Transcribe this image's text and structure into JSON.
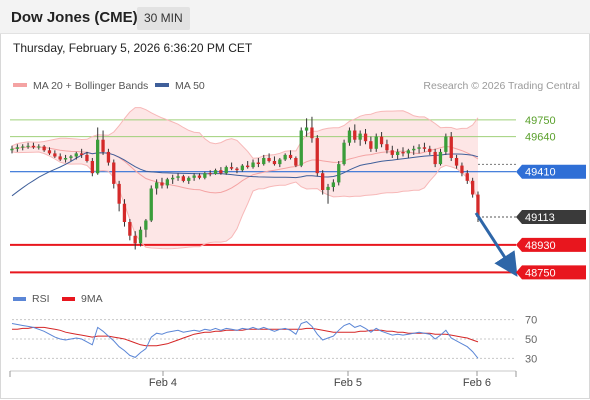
{
  "header": {
    "title": "Dow Jones (CME)",
    "timeframe": "30 MIN"
  },
  "datetime": "Thursday, February 5, 2026 6:36:20 PM CET",
  "legend": {
    "ma20_label": "MA 20 + Bollinger Bands",
    "ma50_label": "MA 50",
    "credit": "Research © 2026 Trading Central",
    "rsi_label": "RSI",
    "rsi_ma_label": "9MA"
  },
  "colors": {
    "ma20": "#f4a3a3",
    "ma50": "#3f5f9a",
    "bull": "#3a9d3a",
    "bear": "#d42a2a",
    "pivot": "#2f6fd6",
    "support": "#e8161e",
    "resistance": "#9fd07a",
    "arrow": "#2e66a8",
    "rsi": "#5b86d6",
    "rsi_ma": "#d52626"
  },
  "chart_data": [
    {
      "type": "candlestick",
      "title": "Dow Jones (CME)",
      "timeframe": "30 MIN",
      "ylim": [
        48700,
        49880
      ],
      "x_ticks": [
        "Feb 4",
        "Feb 5",
        "Feb 6"
      ],
      "y_scale_labels": [
        "49750",
        "49640",
        "49410",
        "49113",
        "48930",
        "48750"
      ],
      "levels": [
        {
          "name": "resistance",
          "value": 49750,
          "label": "49750"
        },
        {
          "name": "resistance",
          "value": 49640,
          "label": "49640"
        },
        {
          "name": "pivot",
          "value": 49410,
          "label": "49410"
        },
        {
          "name": "last",
          "value": 49113,
          "label": "49113"
        },
        {
          "name": "support",
          "value": 48930,
          "label": "48930"
        },
        {
          "name": "support",
          "value": 48750,
          "label": "48750"
        }
      ],
      "forecast_arrow": {
        "from": 49140,
        "to": 48760
      },
      "ohlc": [
        [
          49550,
          49580,
          49530,
          49560
        ],
        [
          49560,
          49590,
          49540,
          49570
        ],
        [
          49570,
          49590,
          49550,
          49575
        ],
        [
          49575,
          49600,
          49560,
          49580
        ],
        [
          49580,
          49600,
          49560,
          49570
        ],
        [
          49570,
          49590,
          49555,
          49575
        ],
        [
          49575,
          49585,
          49540,
          49550
        ],
        [
          49550,
          49570,
          49520,
          49530
        ],
        [
          49530,
          49550,
          49500,
          49510
        ],
        [
          49510,
          49530,
          49480,
          49490
        ],
        [
          49490,
          49520,
          49470,
          49500
        ],
        [
          49500,
          49520,
          49480,
          49510
        ],
        [
          49510,
          49540,
          49490,
          49530
        ],
        [
          49530,
          49560,
          49500,
          49520
        ],
        [
          49520,
          49540,
          49470,
          49480
        ],
        [
          49480,
          49500,
          49380,
          49400
        ],
        [
          49400,
          49700,
          49390,
          49620
        ],
        [
          49620,
          49680,
          49520,
          49540
        ],
        [
          49540,
          49560,
          49450,
          49470
        ],
        [
          49470,
          49490,
          49300,
          49330
        ],
        [
          49330,
          49350,
          49150,
          49200
        ],
        [
          49200,
          49230,
          49050,
          49080
        ],
        [
          49080,
          49100,
          48960,
          48990
        ],
        [
          48990,
          49020,
          48900,
          48940
        ],
        [
          48940,
          49050,
          48920,
          49030
        ],
        [
          49030,
          49100,
          48980,
          49090
        ],
        [
          49090,
          49320,
          49080,
          49300
        ],
        [
          49300,
          49360,
          49260,
          49340
        ],
        [
          49340,
          49370,
          49300,
          49320
        ],
        [
          49320,
          49370,
          49300,
          49360
        ],
        [
          49360,
          49390,
          49330,
          49370
        ],
        [
          49370,
          49400,
          49350,
          49380
        ],
        [
          49380,
          49390,
          49340,
          49350
        ],
        [
          49350,
          49380,
          49330,
          49370
        ],
        [
          49370,
          49400,
          49350,
          49385
        ],
        [
          49385,
          49400,
          49360,
          49370
        ],
        [
          49370,
          49410,
          49360,
          49400
        ],
        [
          49400,
          49420,
          49380,
          49395
        ],
        [
          49395,
          49430,
          49390,
          49420
        ],
        [
          49420,
          49440,
          49390,
          49400
        ],
        [
          49400,
          49450,
          49390,
          49440
        ],
        [
          49440,
          49470,
          49420,
          49430
        ],
        [
          49430,
          49440,
          49400,
          49420
        ],
        [
          49420,
          49460,
          49410,
          49450
        ],
        [
          49450,
          49480,
          49430,
          49440
        ],
        [
          49440,
          49490,
          49430,
          49470
        ],
        [
          49470,
          49500,
          49440,
          49460
        ],
        [
          49460,
          49520,
          49450,
          49500
        ],
        [
          49500,
          49530,
          49470,
          49480
        ],
        [
          49480,
          49510,
          49450,
          49460
        ],
        [
          49460,
          49500,
          49440,
          49490
        ],
        [
          49490,
          49530,
          49480,
          49520
        ],
        [
          49520,
          49550,
          49490,
          49500
        ],
        [
          49500,
          49510,
          49440,
          49450
        ],
        [
          49450,
          49700,
          49440,
          49680
        ],
        [
          49680,
          49760,
          49640,
          49700
        ],
        [
          49700,
          49770,
          49600,
          49630
        ],
        [
          49630,
          49650,
          49380,
          49400
        ],
        [
          49400,
          49420,
          49260,
          49290
        ],
        [
          49290,
          49330,
          49200,
          49310
        ],
        [
          49310,
          49360,
          49280,
          49340
        ],
        [
          49340,
          49480,
          49320,
          49460
        ],
        [
          49460,
          49620,
          49450,
          49600
        ],
        [
          49600,
          49700,
          49580,
          49680
        ],
        [
          49680,
          49720,
          49600,
          49620
        ],
        [
          49620,
          49680,
          49580,
          49660
        ],
        [
          49660,
          49690,
          49590,
          49610
        ],
        [
          49610,
          49640,
          49540,
          49560
        ],
        [
          49560,
          49660,
          49540,
          49640
        ],
        [
          49640,
          49670,
          49570,
          49590
        ],
        [
          49590,
          49620,
          49530,
          49550
        ],
        [
          49550,
          49580,
          49500,
          49520
        ],
        [
          49520,
          49560,
          49490,
          49540
        ],
        [
          49540,
          49570,
          49510,
          49530
        ],
        [
          49530,
          49560,
          49500,
          49550
        ],
        [
          49550,
          49580,
          49520,
          49560
        ],
        [
          49560,
          49590,
          49530,
          49570
        ],
        [
          49570,
          49600,
          49540,
          49560
        ],
        [
          49560,
          49580,
          49520,
          49540
        ],
        [
          49540,
          49560,
          49440,
          49460
        ],
        [
          49460,
          49560,
          49450,
          49540
        ],
        [
          49540,
          49660,
          49520,
          49640
        ],
        [
          49640,
          49670,
          49480,
          49500
        ],
        [
          49500,
          49520,
          49430,
          49450
        ],
        [
          49450,
          49470,
          49380,
          49400
        ],
        [
          49400,
          49420,
          49330,
          49350
        ],
        [
          49350,
          49370,
          49240,
          49260
        ],
        [
          49260,
          49280,
          49080,
          49113
        ]
      ]
    },
    {
      "type": "line",
      "name": "RSI",
      "y_ticks": [
        70,
        50,
        30
      ],
      "ylim": [
        20,
        80
      ],
      "rsi": [
        66,
        65,
        64,
        63,
        62,
        60,
        58,
        55,
        52,
        50,
        49,
        50,
        51,
        50,
        47,
        44,
        62,
        58,
        53,
        48,
        42,
        38,
        33,
        31,
        36,
        40,
        52,
        56,
        55,
        57,
        58,
        59,
        57,
        58,
        59,
        58,
        60,
        59,
        61,
        59,
        61,
        60,
        59,
        61,
        60,
        62,
        60,
        62,
        60,
        58,
        60,
        61,
        59,
        55,
        66,
        68,
        63,
        55,
        49,
        51,
        53,
        59,
        64,
        66,
        62,
        64,
        61,
        57,
        61,
        58,
        56,
        54,
        55,
        54,
        55,
        56,
        57,
        56,
        55,
        50,
        54,
        59,
        51,
        48,
        45,
        42,
        37,
        30
      ],
      "rsi_ma": [
        60,
        60,
        61,
        61,
        62,
        62,
        62,
        61,
        60,
        59,
        57,
        56,
        55,
        54,
        53,
        52,
        53,
        53,
        53,
        52,
        51,
        50,
        48,
        46,
        44,
        43,
        43,
        43,
        44,
        45,
        47,
        49,
        51,
        53,
        55,
        56,
        57,
        57,
        58,
        58,
        59,
        59,
        59,
        59,
        60,
        60,
        60,
        60,
        60,
        60,
        60,
        60,
        60,
        60,
        60,
        61,
        61,
        60,
        59,
        58,
        57,
        57,
        57,
        57,
        57,
        58,
        58,
        59,
        59,
        59,
        58,
        58,
        57,
        57,
        56,
        56,
        56,
        56,
        56,
        55,
        55,
        55,
        54,
        53,
        52,
        51,
        49,
        47
      ]
    }
  ]
}
